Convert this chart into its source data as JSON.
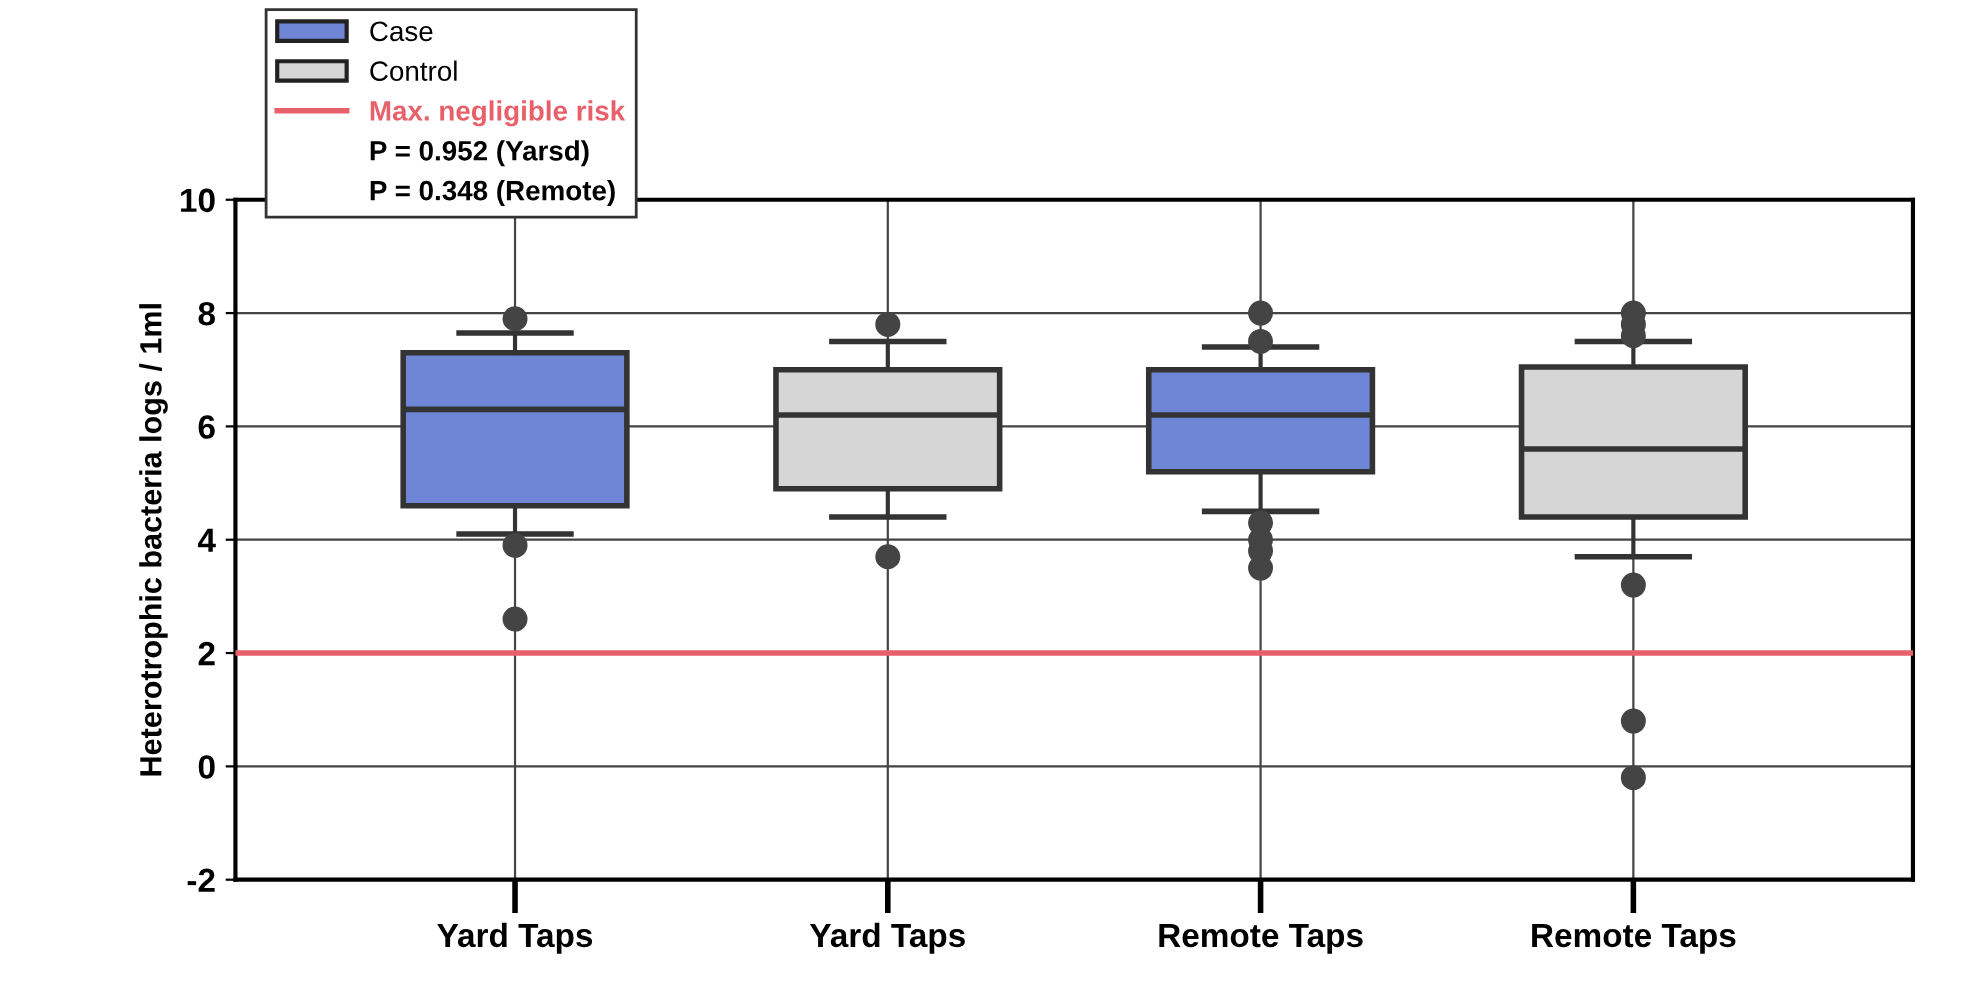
{
  "chart_data": {
    "type": "box",
    "ylabel": "Heterotrophic bacteria logs / 1ml",
    "categories": [
      "Yard Taps",
      "Yard Taps",
      "Remote Taps",
      "Remote Taps"
    ],
    "series": [
      {
        "name": "Case",
        "color": "#6f86d6",
        "boxes": [
          {
            "low": 4.1,
            "q1": 4.6,
            "median": 6.3,
            "q3": 7.3,
            "high": 7.65,
            "outliers": [
              7.9,
              3.9,
              2.6
            ]
          },
          null,
          {
            "low": 4.5,
            "q1": 5.2,
            "median": 6.2,
            "q3": 7.0,
            "high": 7.4,
            "outliers": [
              8.0,
              7.5,
              4.3,
              4.0,
              3.8,
              3.5
            ]
          },
          null
        ]
      },
      {
        "name": "Control",
        "color": "#d6d6d6",
        "boxes": [
          null,
          {
            "low": 4.4,
            "q1": 4.9,
            "median": 6.2,
            "q3": 7.0,
            "high": 7.5,
            "outliers": [
              7.8,
              3.7
            ]
          },
          null,
          {
            "low": 3.7,
            "q1": 4.4,
            "median": 5.6,
            "q3": 7.05,
            "high": 7.5,
            "outliers": [
              8.0,
              7.8,
              7.6,
              3.2,
              0.8,
              -0.2
            ]
          }
        ]
      }
    ],
    "ref_lines": [
      {
        "axis": "y",
        "value": 2,
        "label": "Max. negligible risk",
        "color": "#e8606a"
      }
    ],
    "annotations": [
      "P = 0.952 (Yarsd)",
      "P = 0.348 (Remote)"
    ],
    "ylim": [
      -2,
      10
    ],
    "yticks": [
      -2,
      0,
      2,
      4,
      6,
      8,
      10
    ],
    "grid": true,
    "legend": "top left"
  }
}
